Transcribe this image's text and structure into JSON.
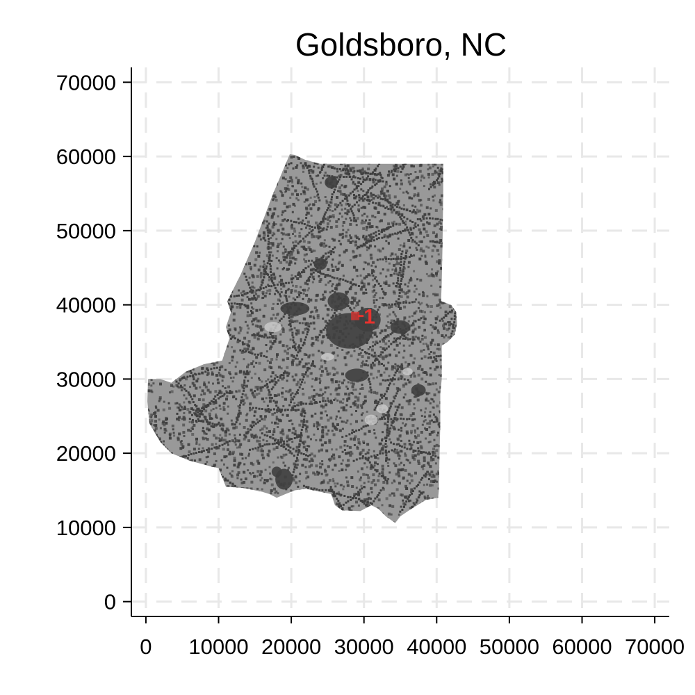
{
  "chart_data": {
    "type": "map",
    "title": "Goldsboro, NC",
    "xlabel": "",
    "ylabel": "",
    "xlim": [
      -2000,
      72000
    ],
    "ylim": [
      -2000,
      72000
    ],
    "x_ticks": [
      0,
      10000,
      20000,
      30000,
      40000,
      50000,
      60000,
      70000
    ],
    "y_ticks": [
      0,
      10000,
      20000,
      30000,
      40000,
      50000,
      60000,
      70000
    ],
    "x_tick_labels": [
      "0",
      "10000",
      "20000",
      "30000",
      "40000",
      "50000",
      "60000",
      "70000"
    ],
    "y_tick_labels": [
      "0",
      "10000",
      "20000",
      "30000",
      "40000",
      "50000",
      "60000",
      "70000"
    ],
    "grid": true,
    "region_color": "#999999",
    "developed_color": "#3f3f3f",
    "light_color": "#c8c8c8",
    "marker_color": "#e8322e",
    "region_outline": [
      [
        19800,
        60300
      ],
      [
        20500,
        60200
      ],
      [
        22000,
        59500
      ],
      [
        24000,
        59000
      ],
      [
        27000,
        59000
      ],
      [
        31000,
        59000
      ],
      [
        35000,
        59000
      ],
      [
        38000,
        59000
      ],
      [
        40900,
        59000
      ],
      [
        40900,
        55000
      ],
      [
        40800,
        48000
      ],
      [
        40700,
        43000
      ],
      [
        40600,
        40500
      ],
      [
        42000,
        40000
      ],
      [
        42700,
        39000
      ],
      [
        42800,
        37500
      ],
      [
        42500,
        36000
      ],
      [
        41500,
        35000
      ],
      [
        40700,
        34500
      ],
      [
        40700,
        30000
      ],
      [
        40500,
        28000
      ],
      [
        40500,
        24000
      ],
      [
        40400,
        20000
      ],
      [
        40300,
        15000
      ],
      [
        40200,
        14000
      ],
      [
        38500,
        13700
      ],
      [
        36500,
        12500
      ],
      [
        35000,
        11500
      ],
      [
        34300,
        10600
      ],
      [
        33000,
        11500
      ],
      [
        32000,
        12500
      ],
      [
        31000,
        13000
      ],
      [
        29500,
        12200
      ],
      [
        27000,
        12300
      ],
      [
        26000,
        13000
      ],
      [
        25500,
        14500
      ],
      [
        24000,
        14800
      ],
      [
        22000,
        15200
      ],
      [
        20500,
        15000
      ],
      [
        19200,
        14500
      ],
      [
        18000,
        14000
      ],
      [
        17000,
        14500
      ],
      [
        16000,
        14800
      ],
      [
        13500,
        15300
      ],
      [
        11000,
        15500
      ],
      [
        10000,
        18000
      ],
      [
        9000,
        18200
      ],
      [
        6000,
        19000
      ],
      [
        3500,
        20000
      ],
      [
        2000,
        21500
      ],
      [
        500,
        24000
      ],
      [
        200,
        27000
      ],
      [
        300,
        30000
      ],
      [
        2000,
        30000
      ],
      [
        3500,
        29500
      ],
      [
        5500,
        31000
      ],
      [
        8000,
        32000
      ],
      [
        10500,
        32500
      ],
      [
        11500,
        35500
      ],
      [
        11000,
        37000
      ],
      [
        11700,
        39000
      ],
      [
        11200,
        40500
      ],
      [
        13000,
        44000
      ],
      [
        15000,
        48500
      ],
      [
        17500,
        55000
      ],
      [
        19800,
        60300
      ]
    ],
    "developed_areas": [
      {
        "x": 28000,
        "y": 36500,
        "rx": 3200,
        "ry": 2400
      },
      {
        "x": 30500,
        "y": 38000,
        "rx": 1800,
        "ry": 1600
      },
      {
        "x": 26500,
        "y": 40500,
        "rx": 1500,
        "ry": 1200
      },
      {
        "x": 19000,
        "y": 16500,
        "rx": 1200,
        "ry": 1400
      },
      {
        "x": 18000,
        "y": 17500,
        "rx": 700,
        "ry": 700
      },
      {
        "x": 25500,
        "y": 56500,
        "rx": 900,
        "ry": 800
      },
      {
        "x": 20500,
        "y": 39500,
        "rx": 2000,
        "ry": 900
      },
      {
        "x": 29000,
        "y": 30500,
        "rx": 1600,
        "ry": 900
      },
      {
        "x": 24000,
        "y": 45500,
        "rx": 900,
        "ry": 800
      },
      {
        "x": 35000,
        "y": 37000,
        "rx": 1400,
        "ry": 900
      },
      {
        "x": 37500,
        "y": 28500,
        "rx": 1000,
        "ry": 800
      }
    ],
    "light_areas": [
      {
        "x": 17500,
        "y": 37000,
        "rx": 1200,
        "ry": 700
      },
      {
        "x": 25000,
        "y": 33000,
        "rx": 900,
        "ry": 500
      },
      {
        "x": 31000,
        "y": 24500,
        "rx": 900,
        "ry": 700
      },
      {
        "x": 32500,
        "y": 26000,
        "rx": 800,
        "ry": 600
      },
      {
        "x": 36000,
        "y": 31000,
        "rx": 700,
        "ry": 500
      }
    ],
    "markers": [
      {
        "x": 28800,
        "y": 38500,
        "label": "1"
      }
    ]
  }
}
